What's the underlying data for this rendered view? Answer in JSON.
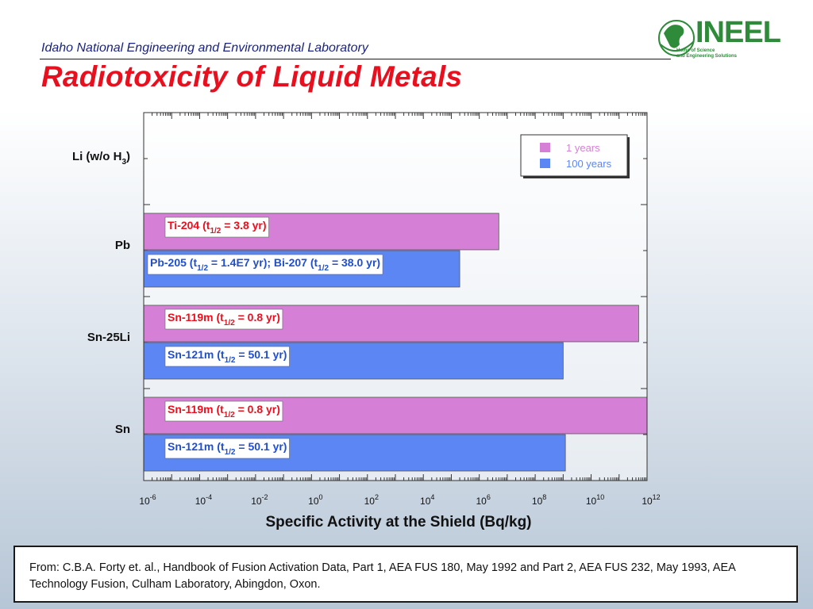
{
  "header": {
    "organization": "Idaho National Engineering and Environmental Laboratory",
    "title": "Radiotoxicity of Liquid Metals"
  },
  "logo": {
    "name": "INEEL",
    "tagline_1": "Home of Science",
    "tagline_2": "and Engineering Solutions"
  },
  "colors": {
    "title": "#e8101e",
    "organization": "#1a237e",
    "series_1yr": "#d67fd6",
    "series_100yr": "#5b86f4",
    "label_1yr": "#e8101e",
    "label_100yr": "#1f4fcf",
    "logo": "#2e8b3a"
  },
  "chart_data": {
    "type": "bar",
    "orientation": "horizontal",
    "xscale": "log",
    "xlabel": "Specific Activity at the Shield (Bq/kg)",
    "xlim": [
      1e-06,
      1000000000000.0
    ],
    "xticks": [
      {
        "base": "10",
        "exp": "-6"
      },
      {
        "base": "10",
        "exp": "-4"
      },
      {
        "base": "10",
        "exp": "-2"
      },
      {
        "base": "10",
        "exp": "0"
      },
      {
        "base": "10",
        "exp": "2"
      },
      {
        "base": "10",
        "exp": "4"
      },
      {
        "base": "10",
        "exp": "6"
      },
      {
        "base": "10",
        "exp": "8"
      },
      {
        "base": "10",
        "exp": "10"
      },
      {
        "base": "10",
        "exp": "12"
      }
    ],
    "categories": [
      {
        "parts": [
          {
            "t": "Li (w/o H"
          },
          {
            "t": "3",
            "sub": true
          },
          {
            "t": ")"
          }
        ]
      },
      {
        "parts": [
          {
            "t": "Pb"
          }
        ]
      },
      {
        "parts": [
          {
            "t": "Sn-25Li"
          }
        ]
      },
      {
        "parts": [
          {
            "t": "Sn"
          }
        ]
      }
    ],
    "legend": {
      "placement": "top-right",
      "entries": [
        {
          "name": "1 years",
          "color": "#d67fd6"
        },
        {
          "name": "100 years",
          "color": "#5b86f4"
        }
      ]
    },
    "series": [
      {
        "name": "1 years",
        "color": "#d67fd6",
        "values": [
          null,
          5000000.0,
          500000000000.0,
          1000000000000.0
        ],
        "annotations": [
          null,
          {
            "parts": [
              {
                "t": "Ti-204 (t"
              },
              {
                "t": "1/2",
                "sub": true
              },
              {
                "t": " = 3.8 yr)"
              }
            ]
          },
          {
            "parts": [
              {
                "t": "Sn-119m (t"
              },
              {
                "t": "1/2",
                "sub": true
              },
              {
                "t": " = 0.8 yr)"
              }
            ]
          },
          {
            "parts": [
              {
                "t": "Sn-119m (t"
              },
              {
                "t": "1/2",
                "sub": true
              },
              {
                "t": " = 0.8 yr)"
              }
            ]
          }
        ]
      },
      {
        "name": "100 years",
        "color": "#5b86f4",
        "values": [
          null,
          200000.0,
          1000000000.0,
          1200000000.0
        ],
        "annotations": [
          null,
          {
            "parts": [
              {
                "t": "Pb-205 (t"
              },
              {
                "t": "1/2",
                "sub": true
              },
              {
                "t": " = 1.4E7 yr); Bi-207 (t"
              },
              {
                "t": "1/2",
                "sub": true
              },
              {
                "t": " = 38.0 yr)"
              }
            ]
          },
          {
            "parts": [
              {
                "t": "Sn-121m (t"
              },
              {
                "t": "1/2",
                "sub": true
              },
              {
                "t": " = 50.1 yr)"
              }
            ]
          },
          {
            "parts": [
              {
                "t": "Sn-121m (t"
              },
              {
                "t": "1/2",
                "sub": true
              },
              {
                "t": " = 50.1 yr)"
              }
            ]
          }
        ]
      }
    ]
  },
  "footer": {
    "source": "From:  C.B.A. Forty et. al., Handbook of Fusion Activation Data, Part 1, AEA FUS 180, May 1992 and Part 2, AEA FUS 232, May 1993, AEA Technology Fusion, Culham Laboratory, Abingdon, Oxon."
  }
}
